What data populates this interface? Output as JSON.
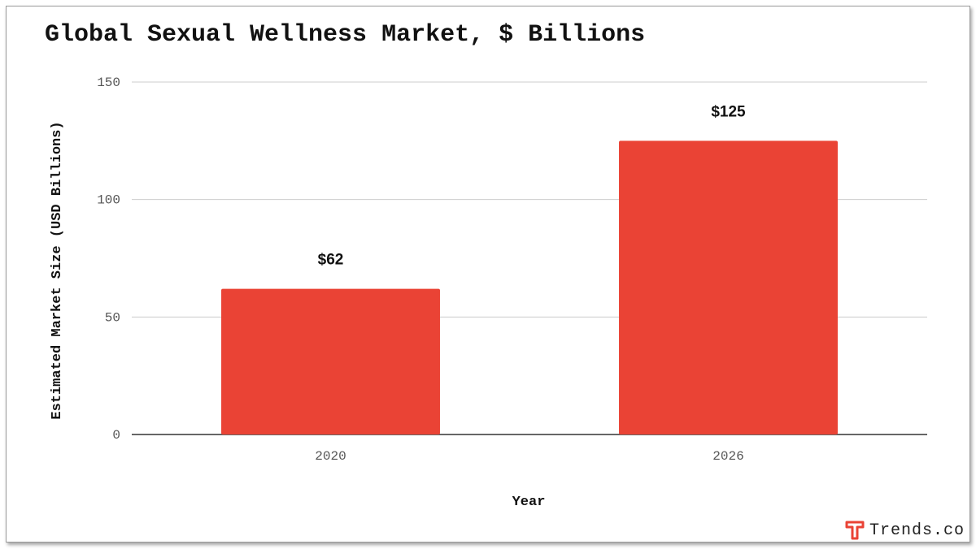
{
  "chart_data": {
    "type": "bar",
    "title": "Global Sexual Wellness Market, $ Billions",
    "categories": [
      "2020",
      "2026"
    ],
    "values": [
      62,
      125
    ],
    "data_labels": [
      "$62",
      "$125"
    ],
    "xlabel": "Year",
    "ylabel": "Estimated Market Size (USD Billions)",
    "ylim": [
      0,
      150
    ],
    "yticks": [
      0,
      50,
      100,
      150
    ],
    "grid": true,
    "legend": "none",
    "bar_color": "#ea4335"
  },
  "brand": {
    "name": "Trends.co",
    "icon": "trends-logo-icon",
    "color": "#ea4335"
  }
}
